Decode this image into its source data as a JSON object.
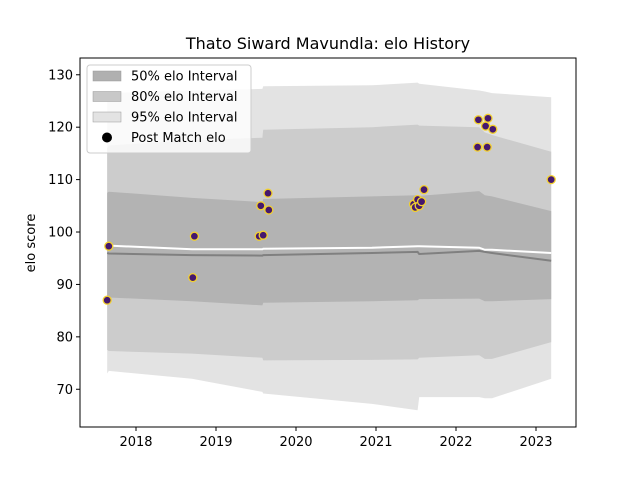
{
  "chart_data": {
    "type": "line",
    "title": "Thato Siward Mavundla: elo History",
    "xlabel": "",
    "ylabel": "elo score",
    "xlim": [
      2017.3,
      2023.5
    ],
    "ylim": [
      62.8,
      133.2
    ],
    "x_ticks": [
      2018,
      2019,
      2020,
      2021,
      2022,
      2023
    ],
    "x_tick_labels": [
      "2018",
      "2019",
      "2020",
      "2021",
      "2022",
      "2023"
    ],
    "y_ticks": [
      70,
      80,
      90,
      100,
      110,
      120,
      130
    ],
    "y_tick_labels": [
      "70",
      "80",
      "90",
      "100",
      "110",
      "120",
      "130"
    ],
    "grid": false,
    "legend_position": "top-left",
    "legend": [
      {
        "label": "50% elo Interval",
        "kind": "band",
        "color": "#b0b0b0"
      },
      {
        "label": "80% elo Interval",
        "kind": "band",
        "color": "#c8c8c8"
      },
      {
        "label": "95% elo Interval",
        "kind": "band",
        "color": "#e3e3e3"
      },
      {
        "label": "Post Match elo",
        "kind": "marker",
        "color": "#000000"
      }
    ],
    "bands": {
      "x": [
        2017.64,
        2017.66,
        2018.7,
        2019.58,
        2019.59,
        2020.95,
        2021.52,
        2021.54,
        2022.29,
        2022.36,
        2022.45,
        2023.19
      ],
      "p95_upper": [
        126.0,
        126.5,
        127.0,
        127.3,
        127.8,
        128.0,
        128.5,
        128.3,
        127.0,
        126.8,
        126.5,
        125.7
      ],
      "p80_upper": [
        116.0,
        116.5,
        117.5,
        118.0,
        119.5,
        120.0,
        120.5,
        120.3,
        120.0,
        119.0,
        118.5,
        115.3
      ],
      "p50_upper": [
        107.5,
        107.7,
        106.5,
        105.7,
        106.3,
        106.8,
        107.0,
        106.9,
        107.8,
        107.0,
        106.8,
        104.0
      ],
      "mean": [
        96.0,
        95.9,
        95.6,
        95.5,
        95.6,
        96.0,
        96.2,
        95.8,
        96.4,
        96.2,
        96.0,
        94.5
      ],
      "p50_lower": [
        87.8,
        87.5,
        86.8,
        86.0,
        86.5,
        86.8,
        87.0,
        87.2,
        87.3,
        86.8,
        86.8,
        87.2
      ],
      "p80_lower": [
        77.5,
        77.3,
        76.8,
        76.0,
        75.5,
        75.6,
        75.7,
        76.0,
        76.5,
        75.8,
        75.8,
        79.0
      ],
      "p95_lower": [
        73.0,
        73.5,
        72.0,
        69.5,
        69.2,
        67.2,
        66.0,
        68.5,
        68.5,
        68.3,
        68.3,
        72.0
      ]
    },
    "expected_line": {
      "x": [
        2017.64,
        2017.66,
        2018.7,
        2019.58,
        2019.59,
        2020.95,
        2021.52,
        2021.54,
        2022.29,
        2022.36,
        2022.45,
        2023.19
      ],
      "y": [
        97.3,
        97.4,
        96.7,
        96.7,
        96.8,
        97.0,
        97.3,
        97.3,
        97.0,
        96.6,
        96.6,
        96.0
      ]
    },
    "series": [
      {
        "name": "Post Match elo",
        "x": [
          2017.64,
          2017.66,
          2018.71,
          2018.73,
          2019.54,
          2019.56,
          2019.59,
          2019.65,
          2019.66,
          2021.47,
          2021.49,
          2021.52,
          2021.54,
          2021.57,
          2021.6,
          2022.27,
          2022.28,
          2022.37,
          2022.39,
          2022.4,
          2022.46,
          2023.19
        ],
        "y": [
          87.0,
          97.3,
          91.3,
          99.2,
          99.2,
          105.0,
          99.4,
          107.4,
          104.2,
          105.3,
          104.7,
          106.2,
          105.0,
          105.8,
          108.1,
          116.2,
          121.4,
          120.2,
          116.2,
          121.7,
          119.6,
          110.0
        ]
      }
    ]
  }
}
